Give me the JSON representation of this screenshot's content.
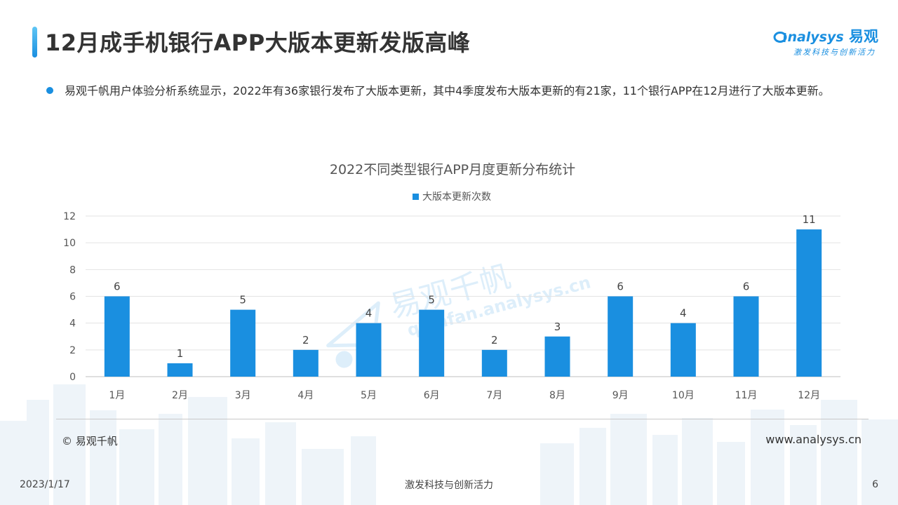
{
  "page": {
    "title": "12月成手机银行APP大版本更新发版高峰",
    "summary": "易观千帆用户体验分析系统显示，2022年有36家银行发布了大版本更新，其中4季度发布大版本更新的有21家，11个银行APP在12月进行了大版本更新。"
  },
  "brand": {
    "logo_latin": "nalysys",
    "logo_cn": "易观",
    "slogan": "激发科技与创新活力"
  },
  "watermark": {
    "cn": "易观千帆",
    "url": "qianfan.analysys.cn"
  },
  "footer": {
    "source": "© 易观千帆",
    "website": "www.analysys.cn",
    "date": "2023/1/17",
    "slogan": "激发科技与创新活力",
    "page_number": "6"
  },
  "colors": {
    "bar": "#1a8fe0",
    "accent": "#1a8fe0"
  },
  "chart_data": {
    "type": "bar",
    "title": "2022不同类型银行APP月度更新分布统计",
    "categories": [
      "1月",
      "2月",
      "3月",
      "4月",
      "5月",
      "6月",
      "7月",
      "8月",
      "9月",
      "10月",
      "11月",
      "12月"
    ],
    "series": [
      {
        "name": "大版本更新次数",
        "values": [
          6,
          1,
          5,
          2,
          4,
          5,
          2,
          3,
          6,
          4,
          6,
          11
        ]
      }
    ],
    "yticks": [
      "0",
      "2",
      "4",
      "6",
      "8",
      "10",
      "12"
    ],
    "ylim": [
      0,
      12
    ],
    "grid": true,
    "legend": "top"
  }
}
